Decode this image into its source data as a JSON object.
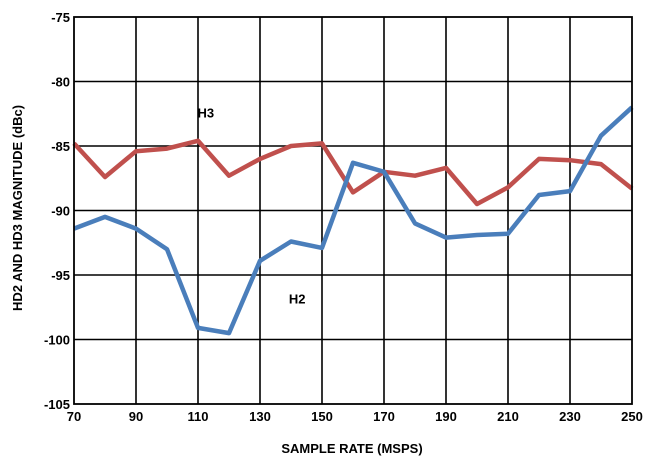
{
  "chart_data": {
    "type": "line",
    "xlabel": "SAMPLE RATE (MSPS)",
    "ylabel": "HD2 AND HD3 MAGNITUDE (dBc)",
    "xlim": [
      70,
      250
    ],
    "ylim": [
      -105,
      -75
    ],
    "x_ticks": [
      70,
      90,
      110,
      130,
      150,
      170,
      190,
      210,
      230,
      250
    ],
    "y_ticks": [
      -75,
      -80,
      -85,
      -90,
      -95,
      -100,
      -105
    ],
    "grid": true,
    "series": [
      {
        "name": "H3",
        "color": "#c0504d",
        "x": [
          70,
          80,
          90,
          100,
          110,
          120,
          130,
          140,
          150,
          160,
          170,
          180,
          190,
          200,
          210,
          220,
          230,
          240,
          250
        ],
        "y": [
          -84.8,
          -87.4,
          -85.4,
          -85.2,
          -84.6,
          -87.3,
          -86.0,
          -85.0,
          -84.8,
          -88.6,
          -87.0,
          -87.3,
          -86.7,
          -89.5,
          -88.2,
          -86.0,
          -86.1,
          -86.4,
          -88.3
        ]
      },
      {
        "name": "H2",
        "color": "#4a7ebb",
        "x": [
          70,
          80,
          90,
          100,
          110,
          120,
          130,
          140,
          150,
          160,
          170,
          180,
          190,
          200,
          210,
          220,
          230,
          240,
          250
        ],
        "y": [
          -91.4,
          -90.5,
          -91.4,
          -93.0,
          -99.1,
          -99.5,
          -93.9,
          -92.4,
          -92.9,
          -86.3,
          -87.0,
          -91.0,
          -92.1,
          -91.9,
          -91.8,
          -88.8,
          -88.5,
          -84.2,
          -82.0
        ]
      }
    ]
  }
}
